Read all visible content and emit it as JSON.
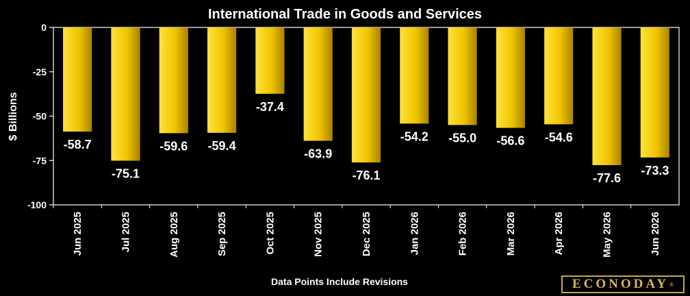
{
  "chart_data": {
    "type": "bar",
    "title": "International Trade in Goods and Services",
    "ylabel": "$ Billions",
    "xlabel": "",
    "note": "Data Points Include Revisions",
    "categories": [
      "Jun 2025",
      "Jul 2025",
      "Aug 2025",
      "Sep 2025",
      "Oct 2025",
      "Nov 2025",
      "Dec 2025",
      "Jan 2026",
      "Feb 2026",
      "Mar 2026",
      "Apr 2026",
      "May 2026",
      "Jun 2026"
    ],
    "values": [
      -58.7,
      -75.1,
      -59.6,
      -59.4,
      -37.4,
      -63.9,
      -76.1,
      -54.2,
      -55.0,
      -56.6,
      -54.6,
      -77.6,
      -73.3
    ],
    "value_labels": [
      "-58.7",
      "-75.1",
      "-59.6",
      "-59.4",
      "-37.4",
      "-63.9",
      "-76.1",
      "-54.2",
      "-55.0",
      "-56.6",
      "-54.6",
      "-77.6",
      "-73.3"
    ],
    "ylim": [
      -100,
      0
    ],
    "yticks": [
      0,
      -25,
      -50,
      -75,
      -100
    ],
    "ytick_labels": [
      "0",
      "-25",
      "-50",
      "-75",
      "-100"
    ],
    "grid": false,
    "colors": {
      "bar_light": "#ffe23a",
      "bar_dark": "#b08a00",
      "background": "#000000"
    }
  },
  "logo": {
    "text": "ECONODAY",
    "mark": "®"
  }
}
